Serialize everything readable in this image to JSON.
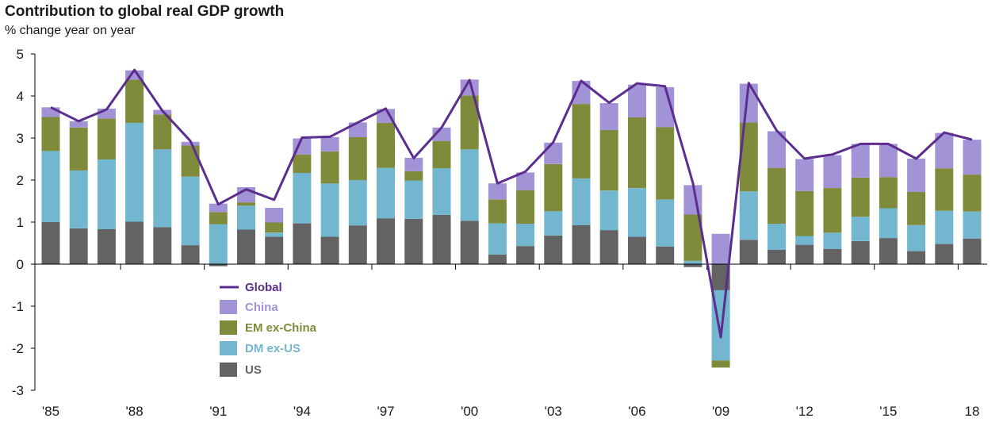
{
  "chart_data": {
    "type": "bar",
    "stacked": true,
    "title": "Contribution to global real GDP growth",
    "subtitle": "% change year on year",
    "xlabel": "",
    "ylabel": "",
    "ylim": [
      -3,
      5
    ],
    "yticks": [
      5,
      4,
      3,
      2,
      1,
      0,
      -1,
      -2,
      -3
    ],
    "yticklabels": [
      "5",
      "4",
      "3",
      "2",
      "1",
      "0",
      "-1",
      "-2",
      "-3"
    ],
    "categories": [
      "1985",
      "1986",
      "1987",
      "1988",
      "1989",
      "1990",
      "1991",
      "1992",
      "1993",
      "1994",
      "1995",
      "1996",
      "1997",
      "1998",
      "1999",
      "2000",
      "2001",
      "2002",
      "2003",
      "2004",
      "2005",
      "2006",
      "2007",
      "2008",
      "2009",
      "2010",
      "2011",
      "2012",
      "2013",
      "2014",
      "2015",
      "2016",
      "2017",
      "2018"
    ],
    "xtick_labels": [
      {
        "index": 0,
        "label": "'85"
      },
      {
        "index": 3,
        "label": "'88"
      },
      {
        "index": 6,
        "label": "'91"
      },
      {
        "index": 9,
        "label": "'94"
      },
      {
        "index": 12,
        "label": "'97"
      },
      {
        "index": 15,
        "label": "'00"
      },
      {
        "index": 18,
        "label": "'03"
      },
      {
        "index": 21,
        "label": "'06"
      },
      {
        "index": 24,
        "label": "'09"
      },
      {
        "index": 27,
        "label": "'12"
      },
      {
        "index": 30,
        "label": "'15"
      },
      {
        "index": 33,
        "label": "18"
      }
    ],
    "series": [
      {
        "name": "US",
        "color": "#636363",
        "values": [
          1.0,
          0.85,
          0.83,
          1.01,
          0.88,
          0.45,
          -0.05,
          0.82,
          0.65,
          0.97,
          0.65,
          0.92,
          1.09,
          1.08,
          1.17,
          1.03,
          0.23,
          0.43,
          0.68,
          0.93,
          0.81,
          0.65,
          0.42,
          -0.07,
          -0.62,
          0.58,
          0.34,
          0.46,
          0.36,
          0.55,
          0.62,
          0.31,
          0.48,
          0.61
        ]
      },
      {
        "name": "DM ex-US",
        "color": "#72b6d0",
        "values": [
          1.69,
          1.38,
          1.66,
          2.35,
          1.85,
          1.63,
          0.95,
          0.57,
          0.1,
          1.2,
          1.27,
          1.08,
          1.2,
          0.91,
          1.11,
          1.7,
          0.74,
          0.53,
          0.58,
          1.11,
          0.94,
          1.16,
          1.12,
          0.08,
          -1.67,
          1.15,
          0.62,
          0.21,
          0.39,
          0.58,
          0.71,
          0.62,
          0.79,
          0.64
        ]
      },
      {
        "name": "EM ex-China",
        "color": "#7f8b3a",
        "values": [
          0.81,
          1.02,
          0.97,
          1.03,
          0.83,
          0.74,
          0.29,
          0.08,
          0.24,
          0.44,
          0.76,
          1.02,
          1.07,
          0.22,
          0.65,
          1.28,
          0.57,
          0.8,
          1.12,
          1.77,
          1.44,
          1.68,
          1.72,
          1.1,
          -0.17,
          1.64,
          1.33,
          1.07,
          1.06,
          0.93,
          0.74,
          0.79,
          1.01,
          0.88
        ]
      },
      {
        "name": "China",
        "color": "#a292d6",
        "values": [
          0.23,
          0.15,
          0.24,
          0.22,
          0.11,
          0.09,
          0.2,
          0.36,
          0.35,
          0.38,
          0.34,
          0.35,
          0.33,
          0.32,
          0.32,
          0.38,
          0.38,
          0.42,
          0.51,
          0.55,
          0.64,
          0.78,
          0.95,
          0.7,
          0.72,
          0.92,
          0.87,
          0.76,
          0.78,
          0.8,
          0.79,
          0.79,
          0.84,
          0.83
        ]
      }
    ],
    "line": {
      "name": "Global",
      "color": "#5b2d8e",
      "values": [
        3.73,
        3.4,
        3.68,
        4.62,
        3.65,
        2.93,
        1.42,
        1.78,
        1.53,
        3.01,
        3.03,
        3.37,
        3.7,
        2.52,
        3.25,
        4.38,
        1.92,
        2.2,
        2.9,
        4.36,
        3.84,
        4.3,
        4.23,
        1.93,
        -1.74,
        4.31,
        3.18,
        2.51,
        2.61,
        2.86,
        2.86,
        2.51,
        3.13,
        2.96
      ]
    },
    "legend": {
      "placement": "bottom-left",
      "entries": [
        "Global",
        "China",
        "EM ex-China",
        "DM ex-US",
        "US"
      ]
    },
    "grid": false
  }
}
